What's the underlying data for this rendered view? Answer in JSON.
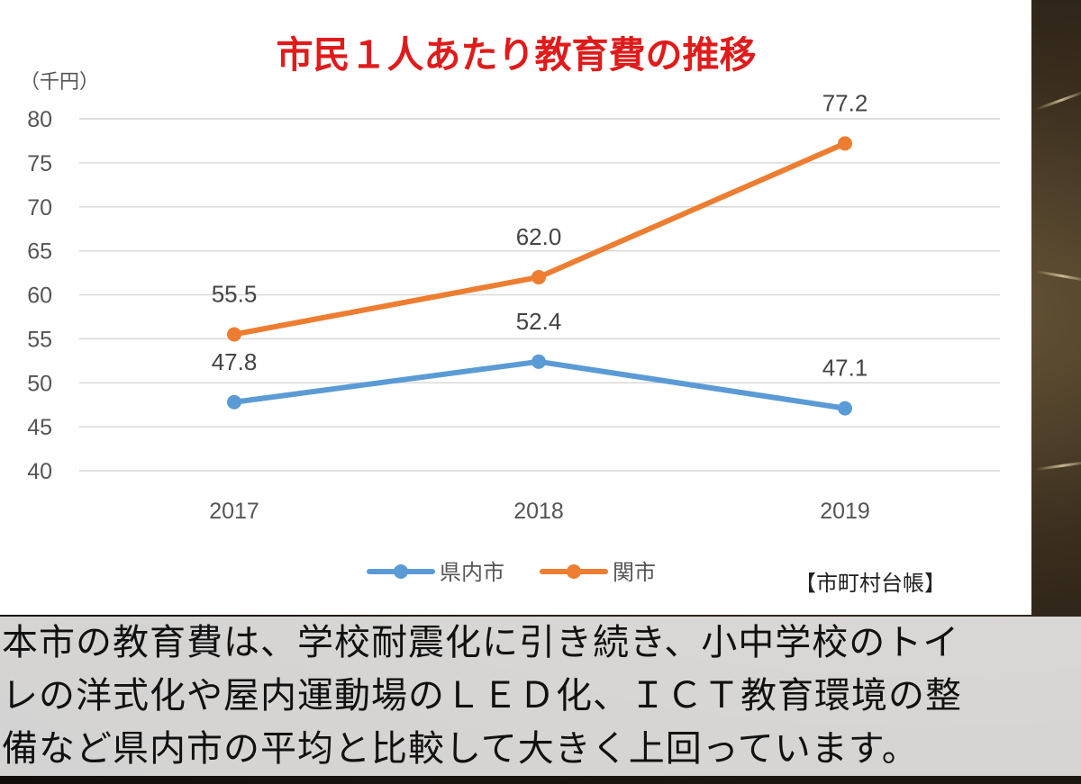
{
  "chart_data": {
    "type": "line",
    "title": "市民１人あたり教育費の推移",
    "unit_label": "（千円）",
    "categories": [
      "2017",
      "2018",
      "2019"
    ],
    "ylim": [
      40,
      80
    ],
    "yticks": [
      "40",
      "45",
      "50",
      "55",
      "60",
      "65",
      "70",
      "75",
      "80"
    ],
    "grid": true,
    "legend_position": "bottom",
    "series": [
      {
        "name": "県内市",
        "color": "#5b9bd5",
        "values": [
          47.8,
          52.4,
          47.1
        ],
        "labels": [
          "47.8",
          "52.4",
          "47.1"
        ]
      },
      {
        "name": "関市",
        "color": "#ed7d31",
        "values": [
          55.5,
          62.0,
          77.2
        ],
        "labels": [
          "55.5",
          "62.0",
          "77.2"
        ]
      }
    ],
    "source": "【市町村台帳】"
  },
  "caption": {
    "lines": [
      "本市の教育費は、学校耐震化に引き続き、小中学校のトイ",
      "レの洋式化や屋内運動場のＬＥＤ化、ＩＣＴ教育環境の整",
      "備など県内市の平均と比較して大きく上回っています。"
    ]
  }
}
